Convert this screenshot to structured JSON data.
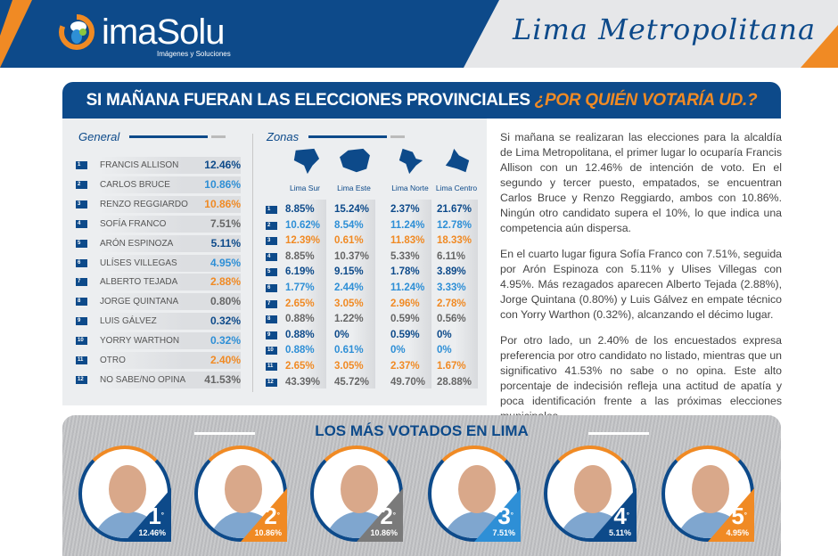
{
  "header": {
    "logo_text": "imaSolu",
    "logo_subtitle": "Imágenes y Soluciones",
    "region_title": "Lima Metropolitana"
  },
  "title": {
    "main": "SI MAÑANA FUERAN LAS ELECCIONES PROVINCIALES",
    "question": "¿POR QUIÉN VOTARÍA UD.?"
  },
  "colors": {
    "dark_blue": "#0d4a8a",
    "light_blue": "#2e8fd6",
    "orange": "#f08a24",
    "gray": "#666666"
  },
  "general": {
    "heading": "General",
    "rows": [
      {
        "n": "1",
        "name": "FRANCIS ALLISON",
        "value": "12.46%"
      },
      {
        "n": "2",
        "name": "CARLOS BRUCE",
        "value": "10.86%"
      },
      {
        "n": "3",
        "name": "RENZO REGGIARDO",
        "value": "10.86%"
      },
      {
        "n": "4",
        "name": "SOFÍA FRANCO",
        "value": "7.51%"
      },
      {
        "n": "5",
        "name": "ARÓN ESPINOZA",
        "value": "5.11%"
      },
      {
        "n": "6",
        "name": "ULÍSES VILLEGAS",
        "value": "4.95%"
      },
      {
        "n": "7",
        "name": "ALBERTO TEJADA",
        "value": "2.88%"
      },
      {
        "n": "8",
        "name": "JORGE QUINTANA",
        "value": "0.80%"
      },
      {
        "n": "9",
        "name": "LUIS GÁLVEZ",
        "value": "0.32%"
      },
      {
        "n": "10",
        "name": "YORRY WARTHON",
        "value": "0.32%"
      },
      {
        "n": "11",
        "name": "OTRO",
        "value": "2.40%"
      },
      {
        "n": "12",
        "name": "NO SABE/NO OPINA",
        "value": "41.53%"
      }
    ]
  },
  "zonas": {
    "heading": "Zonas",
    "zones": [
      "Lima Sur",
      "Lima Este",
      "Lima Norte",
      "Lima Centro"
    ],
    "rows": [
      [
        "8.85%",
        "15.24%",
        "2.37%",
        "21.67%"
      ],
      [
        "10.62%",
        "8.54%",
        "11.24%",
        "12.78%"
      ],
      [
        "12.39%",
        "0.61%",
        "11.83%",
        "18.33%"
      ],
      [
        "8.85%",
        "10.37%",
        "5.33%",
        "6.11%"
      ],
      [
        "6.19%",
        "9.15%",
        "1.78%",
        "3.89%"
      ],
      [
        "1.77%",
        "2.44%",
        "11.24%",
        "3.33%"
      ],
      [
        "2.65%",
        "3.05%",
        "2.96%",
        "2.78%"
      ],
      [
        "0.88%",
        "1.22%",
        "0.59%",
        "0.56%"
      ],
      [
        "0.88%",
        "0%",
        "0.59%",
        "0%"
      ],
      [
        "0.88%",
        "0.61%",
        "0%",
        "0%"
      ],
      [
        "2.65%",
        "3.05%",
        "2.37%",
        "1.67%"
      ],
      [
        "43.39%",
        "45.72%",
        "49.70%",
        "28.88%"
      ]
    ]
  },
  "text": {
    "paragraphs": [
      "Si mañana se realizaran las elecciones para la alcaldía de Lima Metropolitana, el primer lugar lo ocuparía Francis Allison con un 12.46% de intención de voto. En el segundo y tercer puesto, empatados, se encuentran Carlos Bruce y Renzo Reggiardo, ambos con 10.86%. Ningún otro candidato supera el 10%, lo que indica una competencia aún dispersa.",
      "En el cuarto lugar figura Sofía Franco con 7.51%, seguida por Arón Espinoza con 5.11% y Ulises Villegas con 4.95%. Más rezagados aparecen Alberto Tejada (2.88%), Jorge Quintana (0.80%) y Luis Gálvez  en empate técnico con Yorry Warthon (0.32%), alcanzando el décimo lugar.",
      "Por otro lado, un 2.40% de los encuestados expresa preferencia por otro candidato no listado, mientras que un significativo 41.53% no sabe o no opina. Este alto porcentaje de indecisión refleja una actitud de apatía y poca identificación frente a las próximas elecciones municipales."
    ]
  },
  "top": {
    "title": "LOS MÁS VOTADOS EN LIMA",
    "candidates": [
      {
        "rank": "1",
        "sup": "°",
        "pct": "12.46%",
        "color": "#0d4a8a"
      },
      {
        "rank": "2",
        "sup": "°",
        "pct": "10.86%",
        "color": "#f08a24"
      },
      {
        "rank": "2",
        "sup": "°",
        "pct": "10.86%",
        "color": "#7a7a7a"
      },
      {
        "rank": "3",
        "sup": "°",
        "pct": "7.51%",
        "color": "#2e8fd6"
      },
      {
        "rank": "4",
        "sup": "°",
        "pct": "5.11%",
        "color": "#0d4a8a"
      },
      {
        "rank": "5",
        "sup": "°",
        "pct": "4.95%",
        "color": "#f08a24"
      }
    ]
  }
}
